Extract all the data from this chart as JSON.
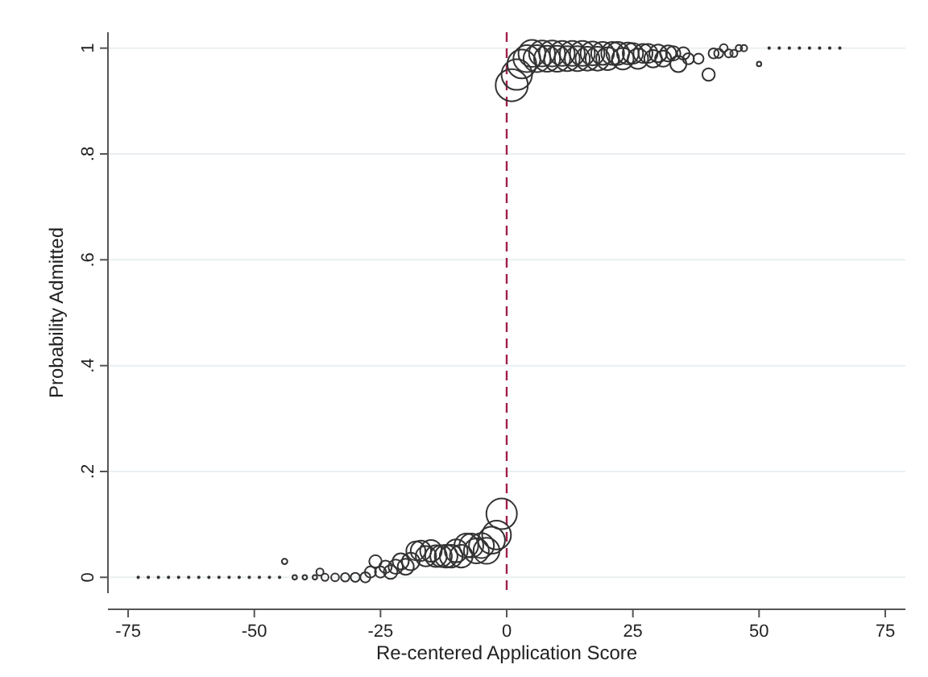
{
  "chart_data": {
    "type": "bubble",
    "xlabel": "Re-centered Application Score",
    "ylabel": "Probability Admitted",
    "xlim": [
      -79,
      79
    ],
    "ylim": [
      -0.03,
      1.03
    ],
    "xticks": [
      -75,
      -50,
      -25,
      0,
      25,
      50,
      75
    ],
    "yticks": [
      0,
      {
        "value": 0.2,
        "label": ".2"
      },
      {
        "value": 0.4,
        "label": ".4"
      },
      {
        "value": 0.6,
        "label": ".6"
      },
      {
        "value": 0.8,
        "label": ".8"
      },
      1
    ],
    "grid": "y",
    "marker": "circle",
    "ref_lines": [
      {
        "axis": "x",
        "value": 0,
        "color": "#a0204a",
        "line_style": "dashed"
      }
    ],
    "series": [
      {
        "color": "#333333",
        "x": [
          -73,
          -71,
          -69,
          -67,
          -65,
          -63,
          -61,
          -59,
          -57,
          -55,
          -53,
          -51,
          -49,
          -47,
          -45,
          -44,
          -42,
          -40,
          -38,
          -37,
          -36,
          -34,
          -32,
          -30,
          -28,
          -27,
          -26,
          -25,
          -24,
          -23,
          -22,
          -21,
          -20,
          -19,
          -18,
          -17,
          -16,
          -15,
          -14,
          -13,
          -12,
          -11,
          -10,
          -9,
          -8,
          -7,
          -6,
          -5,
          -4,
          -3,
          -2,
          -1,
          1,
          2,
          3,
          4,
          5,
          6,
          7,
          8,
          9,
          10,
          11,
          12,
          13,
          14,
          15,
          16,
          17,
          18,
          19,
          20,
          21,
          22,
          23,
          24,
          25,
          26,
          27,
          28,
          29,
          30,
          31,
          32,
          33,
          34,
          35,
          36,
          38,
          40,
          41,
          42,
          43,
          44,
          45,
          46,
          47,
          50,
          52,
          54,
          56,
          58,
          60,
          62,
          64,
          66
        ],
        "values": [
          0,
          0,
          0,
          0,
          0,
          0,
          0,
          0,
          0,
          0,
          0,
          0,
          0,
          0,
          0,
          0.03,
          0,
          0,
          0,
          0.01,
          0,
          0,
          0,
          0,
          0,
          0.01,
          0.03,
          0.01,
          0.02,
          0.01,
          0.02,
          0.03,
          0.02,
          0.03,
          0.05,
          0.05,
          0.04,
          0.05,
          0.04,
          0.04,
          0.04,
          0.04,
          0.05,
          0.04,
          0.06,
          0.06,
          0.05,
          0.06,
          0.05,
          0.07,
          0.08,
          0.12,
          0.93,
          0.95,
          0.97,
          0.98,
          0.99,
          0.98,
          0.99,
          0.98,
          0.99,
          0.98,
          0.99,
          0.98,
          0.99,
          0.98,
          0.99,
          0.98,
          0.99,
          0.98,
          0.99,
          0.98,
          0.99,
          0.99,
          0.98,
          0.99,
          0.99,
          0.98,
          0.99,
          0.99,
          0.98,
          0.99,
          0.98,
          0.99,
          0.99,
          0.97,
          0.99,
          0.98,
          0.98,
          0.95,
          0.99,
          0.99,
          1,
          0.99,
          0.99,
          1,
          1,
          0.97,
          1,
          1,
          1,
          1,
          1,
          1,
          1,
          1
        ],
        "sizes": [
          0.003,
          0.003,
          0.003,
          0.003,
          0.003,
          0.003,
          0.003,
          0.003,
          0.003,
          0.003,
          0.003,
          0.003,
          0.003,
          0.003,
          0.003,
          0.03,
          0.02,
          0.02,
          0.02,
          0.05,
          0.05,
          0.06,
          0.07,
          0.08,
          0.1,
          0.12,
          0.15,
          0.12,
          0.15,
          0.18,
          0.2,
          0.25,
          0.25,
          0.3,
          0.35,
          0.4,
          0.4,
          0.45,
          0.45,
          0.45,
          0.5,
          0.5,
          0.5,
          0.5,
          0.55,
          0.55,
          0.6,
          0.6,
          0.65,
          0.7,
          0.8,
          0.9,
          1,
          0.9,
          0.8,
          0.7,
          0.7,
          0.7,
          0.65,
          0.65,
          0.65,
          0.65,
          0.6,
          0.6,
          0.6,
          0.6,
          0.6,
          0.55,
          0.55,
          0.55,
          0.5,
          0.5,
          0.5,
          0.5,
          0.45,
          0.45,
          0.4,
          0.4,
          0.35,
          0.35,
          0.3,
          0.3,
          0.25,
          0.25,
          0.2,
          0.25,
          0.15,
          0.12,
          0.1,
          0.15,
          0.1,
          0.08,
          0.06,
          0.06,
          0.05,
          0.04,
          0.04,
          0.02,
          0.003,
          0.003,
          0.003,
          0.003,
          0.003,
          0.003,
          0.003,
          0.003
        ]
      }
    ]
  }
}
